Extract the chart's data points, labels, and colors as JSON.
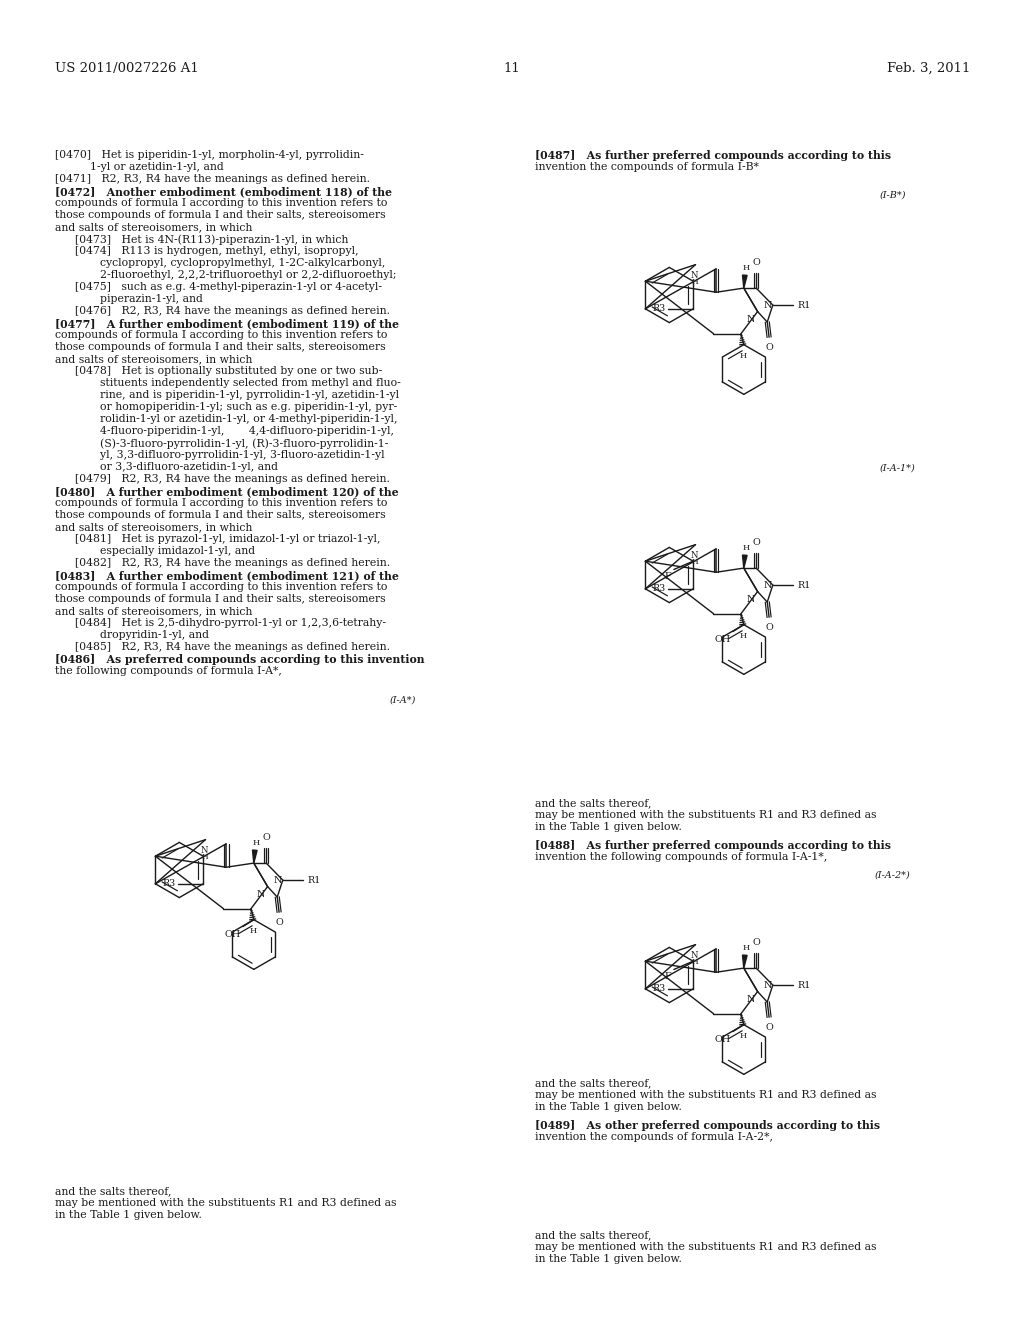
{
  "bg_color": "#ffffff",
  "text_color": "#1a1a1a",
  "header_left": "US 2011/0027226 A1",
  "header_center": "11",
  "header_right": "Feb. 3, 2011",
  "font_size_body": 7.8,
  "font_size_header": 9.5
}
